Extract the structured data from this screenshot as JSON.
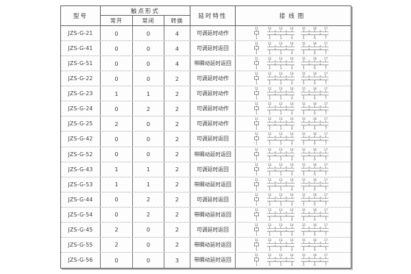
{
  "table": {
    "header": {
      "model": "型号",
      "contact_form": "触点形式",
      "contact_no": "常开",
      "contact_nc": "常闭",
      "contact_changeover": "转换",
      "delay": "延时特性",
      "wiring": "接线图"
    },
    "rows": [
      {
        "model": "JZS-G-21",
        "no": "0",
        "nc": "0",
        "co": "4",
        "delay": "可调延时动作"
      },
      {
        "model": "JZS-G-41",
        "no": "0",
        "nc": "0",
        "co": "4",
        "delay": "可调延时返回"
      },
      {
        "model": "JZS-G-51",
        "no": "0",
        "nc": "0",
        "co": "4",
        "delay": "带瞬动延时返回"
      },
      {
        "model": "JZS-G-22",
        "no": "0",
        "nc": "0",
        "co": "2",
        "delay": "可调延时动作"
      },
      {
        "model": "JZS-G-23",
        "no": "1",
        "nc": "1",
        "co": "2",
        "delay": "可调延时动作"
      },
      {
        "model": "JZS-G-24",
        "no": "0",
        "nc": "2",
        "co": "2",
        "delay": "可调延时动作"
      },
      {
        "model": "JZS-G-25",
        "no": "2",
        "nc": "0",
        "co": "2",
        "delay": "可调延时动作"
      },
      {
        "model": "JZS-G-42",
        "no": "0",
        "nc": "0",
        "co": "2",
        "delay": "可调延时返回"
      },
      {
        "model": "JZS-G-52",
        "no": "0",
        "nc": "0",
        "co": "2",
        "delay": "带瞬动延时返回"
      },
      {
        "model": "JZS-G-43",
        "no": "1",
        "nc": "1",
        "co": "2",
        "delay": "可调延时返回"
      },
      {
        "model": "JZS-G-53",
        "no": "1",
        "nc": "1",
        "co": "2",
        "delay": "带瞬动延时返回"
      },
      {
        "model": "JZS-G-44",
        "no": "0",
        "nc": "2",
        "co": "2",
        "delay": "可调延时返回"
      },
      {
        "model": "JZS-G-54",
        "no": "0",
        "nc": "2",
        "co": "2",
        "delay": "带瞬动延时返回"
      },
      {
        "model": "JZS-G-45",
        "no": "2",
        "nc": "0",
        "co": "2",
        "delay": "可调延时返回"
      },
      {
        "model": "JZS-G-55",
        "no": "2",
        "nc": "0",
        "co": "2",
        "delay": "带瞬动延时返回"
      },
      {
        "model": "JZS-G-56",
        "no": "0",
        "nc": "0",
        "co": "3",
        "delay": "带瞬动延时返回"
      }
    ]
  },
  "wiring": {
    "coil_top": "11",
    "coil_bottom": "1",
    "groups": [
      {
        "top": [
          "12",
          "13",
          "14"
        ],
        "bottom": [
          "2",
          "3",
          "4"
        ]
      },
      {
        "top": [
          "15",
          "16",
          "17"
        ],
        "bottom": [
          "5",
          "6",
          "7"
        ]
      }
    ]
  },
  "colors": {
    "table_border": "#5a5a5a",
    "row_divider": "#a6a6a6",
    "text": "#3a3a3a",
    "diagram_ink": "#555555",
    "shadow": "#b3b3b3",
    "background": "#ffffff"
  }
}
